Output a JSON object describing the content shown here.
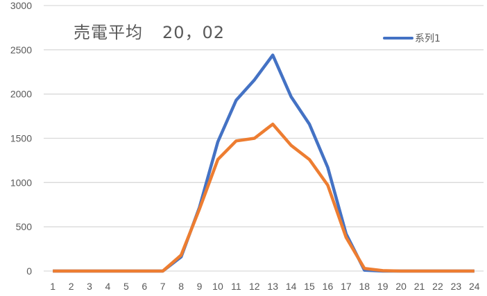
{
  "chart_data": {
    "type": "line",
    "title": "売電平均　20，02",
    "title_parts": {
      "text": "売電平均",
      "number": "20，02"
    },
    "xlabel": "",
    "ylabel": "",
    "categories": [
      1,
      2,
      3,
      4,
      5,
      6,
      7,
      8,
      9,
      10,
      11,
      12,
      13,
      14,
      15,
      16,
      17,
      18,
      19,
      20,
      21,
      22,
      23,
      24
    ],
    "ylim": [
      0,
      3000
    ],
    "yticks": [
      0,
      500,
      1000,
      1500,
      2000,
      2500,
      3000
    ],
    "grid": true,
    "legend": {
      "position": "top-right",
      "entries": [
        "系列1"
      ]
    },
    "series": [
      {
        "name": "系列1",
        "color": "#4472C4",
        "values": [
          0,
          0,
          0,
          0,
          0,
          0,
          0,
          160,
          720,
          1460,
          1930,
          2160,
          2440,
          1970,
          1660,
          1170,
          420,
          10,
          0,
          0,
          0,
          0,
          0,
          0
        ]
      },
      {
        "name": "",
        "color": "#ED7D31",
        "values": [
          0,
          0,
          0,
          0,
          0,
          0,
          0,
          180,
          700,
          1260,
          1470,
          1500,
          1660,
          1420,
          1260,
          970,
          380,
          30,
          5,
          0,
          0,
          0,
          0,
          0
        ]
      }
    ]
  },
  "legend_label": "系列1"
}
